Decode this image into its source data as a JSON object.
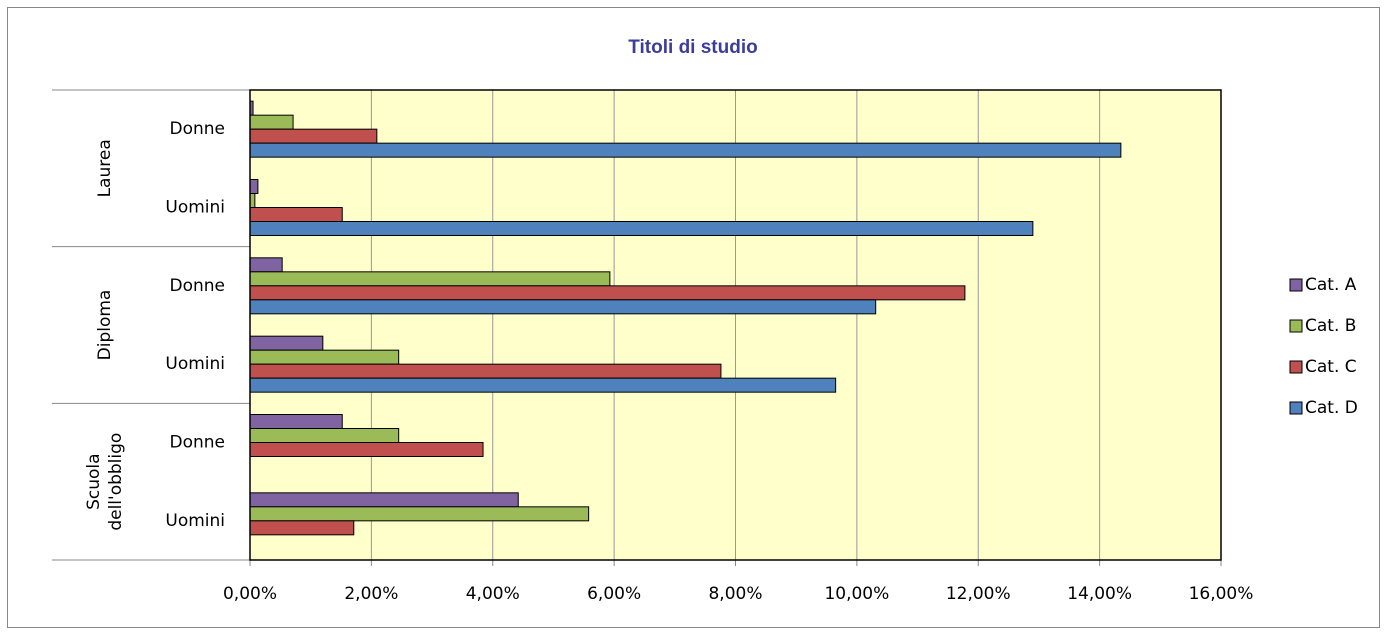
{
  "chart_data": {
    "type": "bar",
    "orientation": "horizontal",
    "title": "Titoli di studio",
    "groups": [
      "Laurea",
      "Diploma",
      "Scuola dell'obbligo"
    ],
    "categories": [
      "Donne",
      "Uomini",
      "Donne",
      "Uomini",
      "Donne",
      "Uomini"
    ],
    "series": [
      {
        "name": "Cat. A",
        "color": "#8064a2",
        "values": [
          0.05,
          0.13,
          0.53,
          1.2,
          1.52,
          4.42
        ]
      },
      {
        "name": "Cat. B",
        "color": "#9bbb59",
        "values": [
          0.71,
          0.08,
          5.93,
          2.45,
          2.45,
          5.58
        ]
      },
      {
        "name": "Cat. C",
        "color": "#c0504d",
        "values": [
          2.09,
          1.52,
          11.78,
          7.76,
          3.84,
          1.71
        ]
      },
      {
        "name": "Cat. D",
        "color": "#4f81bd",
        "values": [
          14.35,
          12.9,
          10.31,
          9.65,
          null,
          null
        ]
      }
    ],
    "xlim": [
      0,
      16
    ],
    "xticks": [
      {
        "value": 0,
        "label": "0,00%"
      },
      {
        "value": 2,
        "label": "2,00%"
      },
      {
        "value": 4,
        "label": "4,00%"
      },
      {
        "value": 6,
        "label": "6,00%"
      },
      {
        "value": 8,
        "label": "8,00%"
      },
      {
        "value": 10,
        "label": "10,00%"
      },
      {
        "value": 12,
        "label": "12,00%"
      },
      {
        "value": 14,
        "label": "14,00%"
      },
      {
        "value": 16,
        "label": "16,00%"
      }
    ],
    "grid": true,
    "legend": "right"
  }
}
